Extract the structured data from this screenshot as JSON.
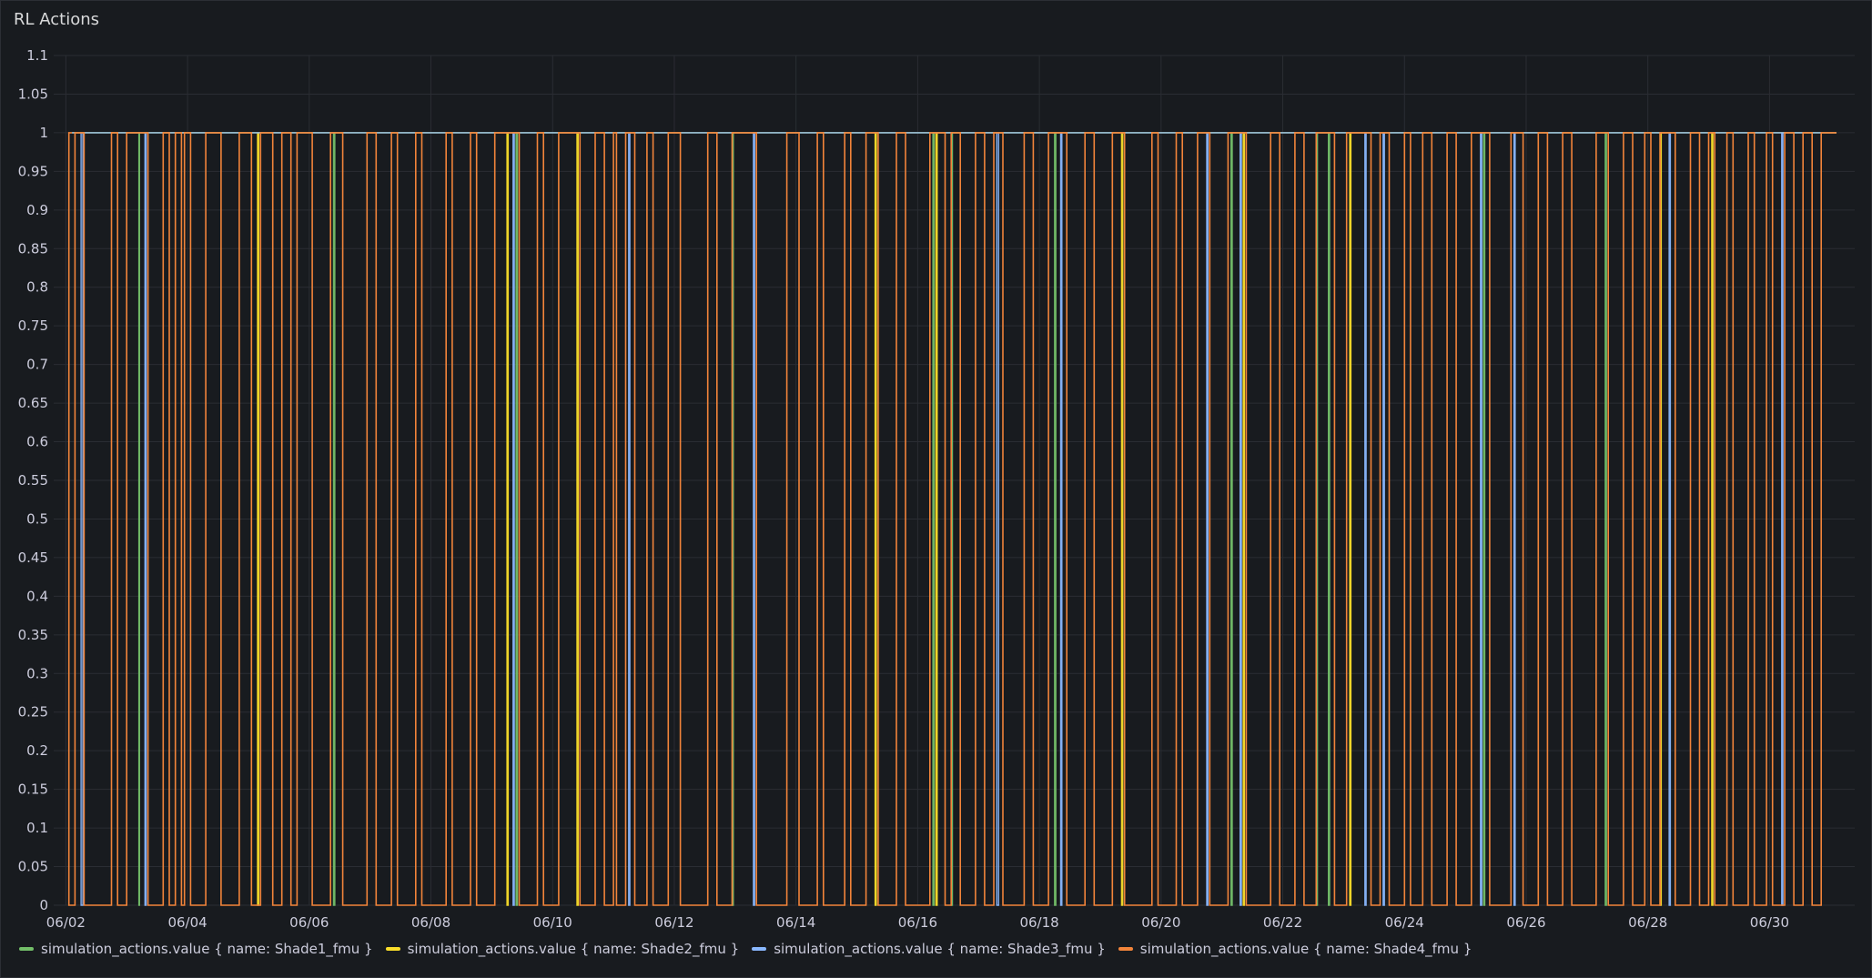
{
  "panel": {
    "title": "RL Actions"
  },
  "chart_data": {
    "type": "line",
    "interpolation": "step",
    "grid": true,
    "ylim": [
      0,
      1.1
    ],
    "yticks": [
      "0",
      "0.05",
      "0.1",
      "0.15",
      "0.2",
      "0.25",
      "0.3",
      "0.35",
      "0.4",
      "0.45",
      "0.5",
      "0.55",
      "0.6",
      "0.65",
      "0.7",
      "0.75",
      "0.8",
      "0.85",
      "0.9",
      "0.95",
      "1",
      "1.05",
      "1.1"
    ],
    "xlim": [
      "06/02",
      "06/31"
    ],
    "xticks": [
      "06/02",
      "06/04",
      "06/06",
      "06/08",
      "06/10",
      "06/12",
      "06/14",
      "06/16",
      "06/18",
      "06/20",
      "06/22",
      "06/24",
      "06/26",
      "06/28",
      "06/30"
    ],
    "legend_position": "bottom-left",
    "series": [
      {
        "name": "simulation_actions.value { name: Shade1_fmu }",
        "color": "#73bf69",
        "drops": [
          [
            3.2,
            3.21
          ],
          [
            6.4,
            6.42
          ],
          [
            9.4,
            9.42
          ],
          [
            12.95,
            12.97
          ],
          [
            16.25,
            16.27
          ],
          [
            16.55,
            16.57
          ],
          [
            18.25,
            18.27
          ],
          [
            21.15,
            21.17
          ],
          [
            22.55,
            22.57
          ],
          [
            22.75,
            22.77
          ],
          [
            25.3,
            25.32
          ],
          [
            27.3,
            27.32
          ]
        ],
        "baseline": 1
      },
      {
        "name": "simulation_actions.value { name: Shade2_fmu }",
        "color": "#fade2a",
        "drops": [
          [
            5.15,
            5.17
          ],
          [
            9.25,
            9.27
          ],
          [
            10.4,
            10.42
          ],
          [
            15.3,
            15.32
          ],
          [
            16.3,
            16.32
          ],
          [
            19.35,
            19.37
          ],
          [
            21.35,
            21.37
          ],
          [
            23.1,
            23.12
          ],
          [
            28.2,
            28.22
          ],
          [
            29.05,
            29.07
          ]
        ],
        "baseline": 1
      },
      {
        "name": "simulation_actions.value { name: Shade3_fmu }",
        "color": "#8ab8ff",
        "drops": [
          [
            2.25,
            2.28
          ],
          [
            3.3,
            3.32
          ],
          [
            9.35,
            9.37
          ],
          [
            11.25,
            11.27
          ],
          [
            13.3,
            13.32
          ],
          [
            17.3,
            17.33
          ],
          [
            18.35,
            18.37
          ],
          [
            20.75,
            20.77
          ],
          [
            21.3,
            21.32
          ],
          [
            23.35,
            23.37
          ],
          [
            23.65,
            23.67
          ],
          [
            25.25,
            25.27
          ],
          [
            25.8,
            25.82
          ],
          [
            28.35,
            28.37
          ],
          [
            30.2,
            30.22
          ]
        ],
        "baseline": 1
      },
      {
        "name": "simulation_actions.value { name: Shade4_fmu }",
        "color": "#f2843a",
        "drops": [
          [
            2.05,
            2.15
          ],
          [
            2.3,
            2.75
          ],
          [
            2.85,
            3.0
          ],
          [
            3.35,
            3.6
          ],
          [
            3.7,
            3.8
          ],
          [
            3.9,
            3.95
          ],
          [
            4.05,
            4.3
          ],
          [
            4.55,
            4.85
          ],
          [
            5.05,
            5.2
          ],
          [
            5.4,
            5.55
          ],
          [
            5.7,
            5.8
          ],
          [
            6.05,
            6.35
          ],
          [
            6.55,
            6.95
          ],
          [
            7.1,
            7.35
          ],
          [
            7.45,
            7.75
          ],
          [
            7.85,
            8.25
          ],
          [
            8.35,
            8.65
          ],
          [
            8.75,
            9.05
          ],
          [
            9.45,
            9.75
          ],
          [
            9.85,
            10.1
          ],
          [
            10.45,
            10.7
          ],
          [
            10.85,
            11.0
          ],
          [
            11.05,
            11.2
          ],
          [
            11.35,
            11.55
          ],
          [
            11.65,
            11.9
          ],
          [
            12.1,
            12.55
          ],
          [
            12.7,
            12.95
          ],
          [
            13.35,
            13.85
          ],
          [
            14.05,
            14.35
          ],
          [
            14.45,
            14.8
          ],
          [
            14.9,
            15.15
          ],
          [
            15.35,
            15.65
          ],
          [
            15.8,
            16.2
          ],
          [
            16.45,
            16.55
          ],
          [
            16.7,
            16.95
          ],
          [
            17.1,
            17.25
          ],
          [
            17.4,
            17.75
          ],
          [
            17.9,
            18.15
          ],
          [
            18.45,
            18.75
          ],
          [
            18.9,
            19.2
          ],
          [
            19.4,
            19.85
          ],
          [
            19.95,
            20.25
          ],
          [
            20.35,
            20.6
          ],
          [
            20.8,
            21.1
          ],
          [
            21.4,
            21.8
          ],
          [
            21.95,
            22.2
          ],
          [
            22.35,
            22.55
          ],
          [
            22.85,
            23.05
          ],
          [
            23.45,
            23.6
          ],
          [
            23.75,
            24.0
          ],
          [
            24.1,
            24.3
          ],
          [
            24.45,
            24.7
          ],
          [
            24.85,
            25.1
          ],
          [
            25.4,
            25.75
          ],
          [
            25.95,
            26.2
          ],
          [
            26.35,
            26.6
          ],
          [
            26.75,
            27.15
          ],
          [
            27.35,
            27.6
          ],
          [
            27.75,
            27.95
          ],
          [
            28.05,
            28.2
          ],
          [
            28.45,
            28.7
          ],
          [
            28.85,
            29.0
          ],
          [
            29.1,
            29.3
          ],
          [
            29.4,
            29.65
          ],
          [
            29.75,
            29.95
          ],
          [
            30.05,
            30.25
          ],
          [
            30.4,
            30.55
          ],
          [
            30.7,
            30.85
          ]
        ],
        "baseline": 1
      }
    ]
  }
}
